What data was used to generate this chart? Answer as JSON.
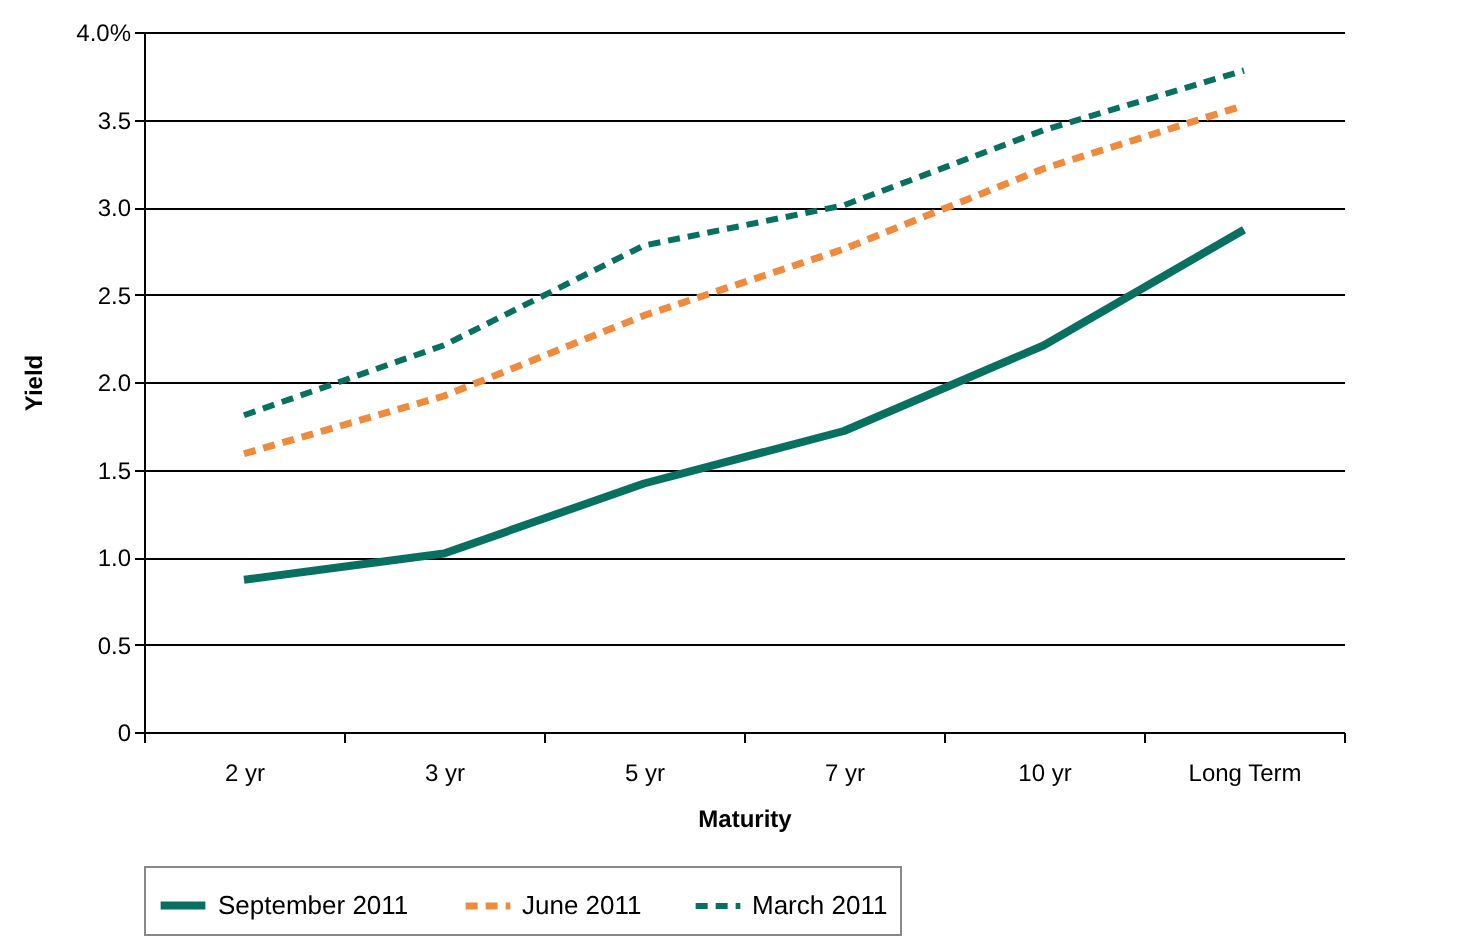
{
  "chart_data": {
    "type": "line",
    "xlabel": "Maturity",
    "ylabel": "Yield",
    "categories": [
      "2 yr",
      "3 yr",
      "5 yr",
      "7 yr",
      "10 yr",
      "Long Term"
    ],
    "series": [
      {
        "name": "September 2011",
        "color": "#087060",
        "line_style": "solid",
        "values": [
          0.87,
          1.02,
          1.42,
          1.72,
          2.21,
          2.87
        ]
      },
      {
        "name": "June 2011",
        "color": "#f08a3c",
        "line_style": "dashed",
        "values": [
          1.59,
          1.92,
          2.38,
          2.76,
          3.22,
          3.58
        ]
      },
      {
        "name": "March 2011",
        "color": "#087060",
        "line_style": "dashed",
        "values": [
          1.81,
          2.21,
          2.78,
          3.01,
          3.44,
          3.78
        ]
      }
    ],
    "ylim": [
      0,
      4
    ],
    "yticks": [
      0,
      0.5,
      {
        "value": 1,
        "label": "1.0"
      },
      1.5,
      {
        "value": 2,
        "label": "2.0"
      },
      2.5,
      {
        "value": 3,
        "label": "3.0"
      },
      3.5,
      {
        "value": 4,
        "label": "4.0%"
      }
    ],
    "grid": "y",
    "legend": "bottom",
    "marker": "none"
  }
}
